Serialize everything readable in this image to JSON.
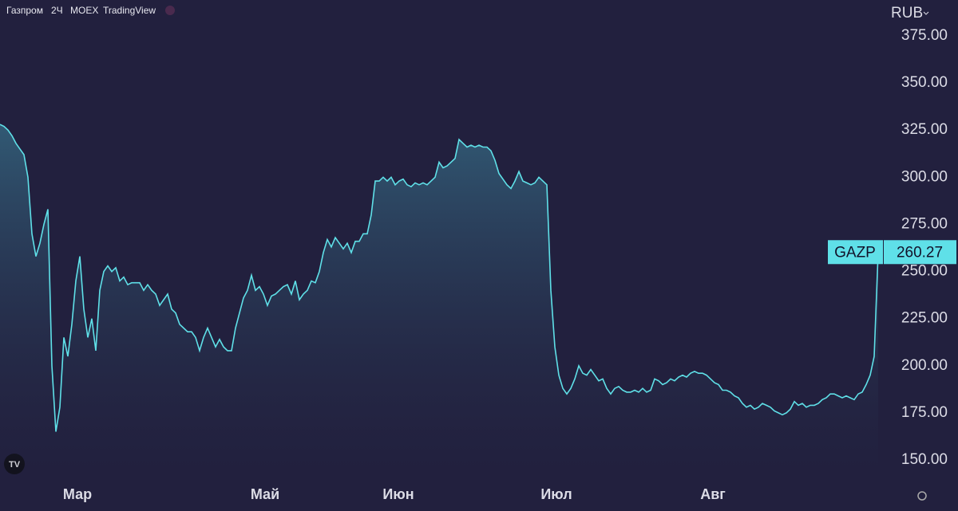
{
  "header": {
    "symbol": "Газпром",
    "interval": "2Ч",
    "exchange": "MOEX",
    "source": "TradingView"
  },
  "chart_data": {
    "type": "area",
    "currency": "RUB",
    "series": [
      {
        "name": "GAZP",
        "color": "#5fe0e8",
        "last_value_label": "260.27",
        "values": [
          328,
          327,
          325,
          322,
          318,
          315,
          312,
          300,
          270,
          258,
          265,
          275,
          283,
          200,
          165,
          178,
          215,
          205,
          222,
          245,
          258,
          230,
          215,
          225,
          208,
          240,
          250,
          253,
          250,
          252,
          245,
          247,
          243,
          244,
          244,
          244,
          240,
          243,
          240,
          238,
          232,
          235,
          238,
          230,
          228,
          222,
          220,
          218,
          218,
          215,
          208,
          215,
          220,
          215,
          210,
          214,
          210,
          208,
          208,
          220,
          228,
          236,
          240,
          248,
          240,
          242,
          238,
          232,
          237,
          238,
          240,
          242,
          243,
          238,
          245,
          235,
          238,
          240,
          245,
          244,
          250,
          260,
          267,
          263,
          268,
          265,
          262,
          265,
          260,
          266,
          266,
          270,
          270,
          280,
          298,
          298,
          300,
          298,
          300,
          296,
          298,
          299,
          296,
          295,
          297,
          296,
          297,
          296,
          298,
          300,
          308,
          305,
          306,
          308,
          310,
          320,
          318,
          316,
          317,
          316,
          317,
          316,
          316,
          314,
          309,
          302,
          299,
          296,
          294,
          298,
          303,
          298,
          297,
          296,
          297,
          300,
          298,
          296,
          240,
          210,
          195,
          188,
          185,
          188,
          193,
          200,
          196,
          195,
          198,
          195,
          192,
          193,
          188,
          185,
          188,
          189,
          187,
          186,
          186,
          187,
          186,
          188,
          186,
          187,
          193,
          192,
          190,
          191,
          193,
          192,
          194,
          195,
          194,
          196,
          197,
          196,
          196,
          195,
          193,
          191,
          190,
          187,
          187,
          186,
          184,
          183,
          180,
          178,
          179,
          177,
          178,
          180,
          179,
          178,
          176,
          175,
          174,
          175,
          177,
          181,
          179,
          180,
          178,
          179,
          179,
          180,
          182,
          183,
          185,
          185,
          184,
          183,
          184,
          183,
          182,
          185,
          186,
          190,
          195,
          205,
          260.27
        ]
      }
    ],
    "xlim": [
      0,
      220
    ],
    "xticks": [
      {
        "value": 19.4,
        "label": "Мар"
      },
      {
        "value": 66.4,
        "label": "Май"
      },
      {
        "value": 99.8,
        "label": "Июн"
      },
      {
        "value": 139.4,
        "label": "Июл"
      },
      {
        "value": 178.6,
        "label": "Авг"
      }
    ],
    "ylim": [
      150,
      375
    ],
    "yticks": [
      {
        "value": 150,
        "label": "150.00"
      },
      {
        "value": 175,
        "label": "175.00"
      },
      {
        "value": 200,
        "label": "200.00"
      },
      {
        "value": 225,
        "label": "225.00"
      },
      {
        "value": 250,
        "label": "250.00"
      },
      {
        "value": 275,
        "label": "275.00"
      },
      {
        "value": 300,
        "label": "300.00"
      },
      {
        "value": 325,
        "label": "325.00"
      },
      {
        "value": 350,
        "label": "350.00"
      },
      {
        "value": 375,
        "label": "375.00"
      }
    ],
    "grid": false
  }
}
